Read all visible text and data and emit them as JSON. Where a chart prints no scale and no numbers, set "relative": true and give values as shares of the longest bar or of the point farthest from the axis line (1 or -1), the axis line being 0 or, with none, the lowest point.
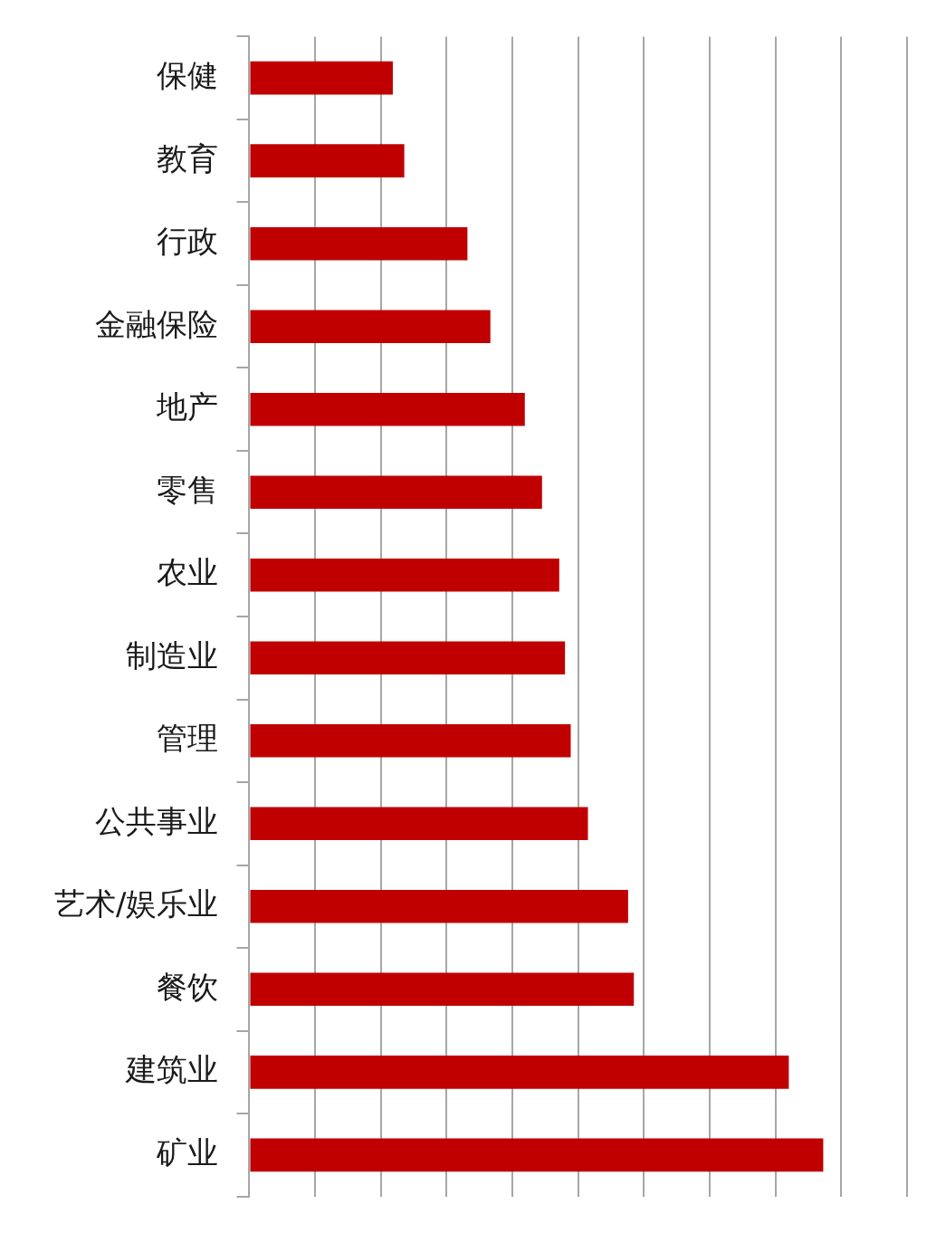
{
  "chart_data": {
    "type": "bar",
    "orientation": "horizontal",
    "relative": true,
    "grid": "x",
    "color": "#c00000",
    "categories": [
      "保健",
      "教育",
      "行政",
      "金融保险",
      "地产",
      "零售",
      "农业",
      "制造业",
      "管理",
      "公共事业",
      "艺术/娱乐业",
      "餐饮",
      "建筑业",
      "矿业"
    ],
    "values": [
      0.25,
      0.27,
      0.38,
      0.42,
      0.48,
      0.51,
      0.54,
      0.55,
      0.56,
      0.59,
      0.66,
      0.67,
      0.94,
      1
    ]
  }
}
